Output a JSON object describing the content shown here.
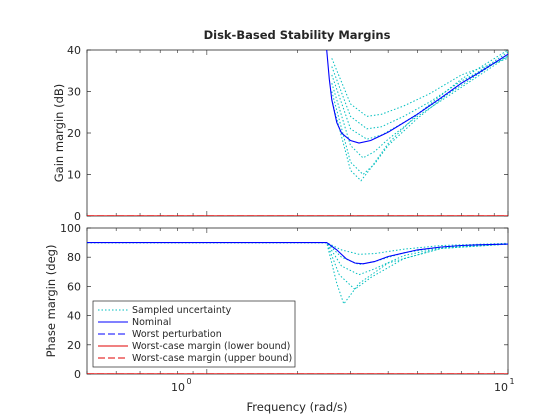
{
  "chart_data": {
    "type": "line",
    "title": "Disk-Based Stability Margins",
    "xlabel": "Frequency (rad/s)",
    "xscale": "log",
    "xlim": [
      0.4,
      10
    ],
    "xtick_labels": [
      "10^0",
      "10^1"
    ],
    "legend": {
      "placement": "bottom-left of lower axes",
      "entries": [
        "Sampled uncertainty",
        "Nominal",
        "Worst perturbation",
        "Worst-case margin (lower bound)",
        "Worst-case margin (upper bound)"
      ]
    },
    "colors": {
      "sampled": "#00bfbf",
      "nominal": "#0000ff",
      "worst_perturbation": "#0000ff",
      "lower_bound": "#e00000",
      "upper_bound": "#e00000"
    },
    "panels": [
      {
        "ylabel": "Gain margin (dB)",
        "ylim": [
          0,
          40
        ],
        "yticks": [
          0,
          10,
          20,
          30,
          40
        ],
        "nominal": {
          "x": [
            2.5,
            2.55,
            2.6,
            2.7,
            2.8,
            3.0,
            3.2,
            3.5,
            4.0,
            5.0,
            6.0,
            7.0,
            8.0,
            10.0
          ],
          "y": [
            40,
            33,
            28,
            22.5,
            20,
            18.2,
            17.6,
            18.2,
            20.2,
            24.5,
            28.5,
            32,
            34.5,
            39
          ]
        },
        "sampled": [
          {
            "x": [
              2.6,
              3.0,
              3.4,
              3.8,
              4.5,
              5.5,
              7.0,
              10.0
            ],
            "y": [
              38,
              27,
              24,
              24.5,
              26.5,
              29.5,
              34,
              38
            ]
          },
          {
            "x": [
              2.6,
              3.0,
              3.4,
              3.8,
              4.5,
              5.5,
              7.0,
              10.0
            ],
            "y": [
              36,
              24,
              21,
              21.5,
              24,
              27.5,
              32.5,
              38.5
            ]
          },
          {
            "x": [
              2.6,
              3.0,
              3.4,
              3.8,
              4.5,
              5.5,
              7.0,
              10.0
            ],
            "y": [
              34,
              21,
              18.5,
              19.5,
              22.5,
              26.5,
              31.5,
              39
            ]
          },
          {
            "x": [
              2.6,
              3.0,
              3.3,
              3.6,
              4.0,
              5.0,
              7.0,
              10.0
            ],
            "y": [
              32,
              17,
              14,
              15.5,
              18.5,
              24,
              31,
              38.5
            ]
          },
          {
            "x": [
              2.6,
              3.0,
              3.3,
              3.6,
              4.0,
              5.0,
              7.0,
              10.0
            ],
            "y": [
              30,
              13,
              10,
              12.5,
              17,
              23.5,
              32,
              39.5
            ]
          },
          {
            "x": [
              2.6,
              3.0,
              3.25,
              3.5,
              4.0,
              5.0,
              7.0,
              10.0
            ],
            "y": [
              28,
              11,
              8.5,
              11.5,
              17.5,
              24.5,
              33,
              40
            ]
          }
        ],
        "lower_bound": {
          "x": [
            0.4,
            10
          ],
          "y": [
            0,
            0
          ]
        },
        "upper_bound": {
          "x": [
            0.4,
            10
          ],
          "y": [
            0,
            0
          ]
        }
      },
      {
        "ylabel": "Phase margin (deg)",
        "ylim": [
          0,
          100
        ],
        "yticks": [
          0,
          20,
          40,
          60,
          80,
          100
        ],
        "nominal": {
          "x": [
            0.4,
            2.5,
            2.7,
            2.9,
            3.1,
            3.3,
            3.6,
            4.0,
            5.0,
            6.0,
            7.0,
            8.0,
            10.0
          ],
          "y": [
            90,
            90,
            85,
            79,
            76,
            75.5,
            77,
            80.5,
            85,
            87,
            88,
            88.5,
            89
          ]
        },
        "sampled": [
          {
            "x": [
              0.4,
              2.5,
              2.8,
              3.2,
              3.6,
              4.5,
              6.0,
              10.0
            ],
            "y": [
              90,
              90,
              85,
              82,
              82.5,
              85.5,
              88,
              89.5
            ]
          },
          {
            "x": [
              0.4,
              2.5,
              2.8,
              3.2,
              3.6,
              4.5,
              6.0,
              10.0
            ],
            "y": [
              90,
              90,
              80,
              75,
              77,
              83,
              87,
              89
            ]
          },
          {
            "x": [
              0.4,
              2.5,
              2.8,
              3.2,
              3.6,
              4.5,
              6.0,
              10.0
            ],
            "y": [
              90,
              90,
              74,
              68,
              72,
              81,
              86.5,
              89
            ]
          },
          {
            "x": [
              0.4,
              2.5,
              2.75,
              3.1,
              3.5,
              4.5,
              6.0,
              10.0
            ],
            "y": [
              90,
              90,
              68,
              58,
              66,
              79,
              86,
              89
            ]
          },
          {
            "x": [
              0.4,
              2.5,
              2.7,
              2.85,
              3.2,
              4.0,
              6.0,
              10.0
            ],
            "y": [
              90,
              90,
              62,
              48,
              62,
              76,
              86,
              89
            ]
          }
        ],
        "lower_bound": {
          "x": [
            0.4,
            10
          ],
          "y": [
            0,
            0
          ]
        },
        "upper_bound": {
          "x": [
            0.4,
            10
          ],
          "y": [
            0,
            0
          ]
        }
      }
    ]
  }
}
